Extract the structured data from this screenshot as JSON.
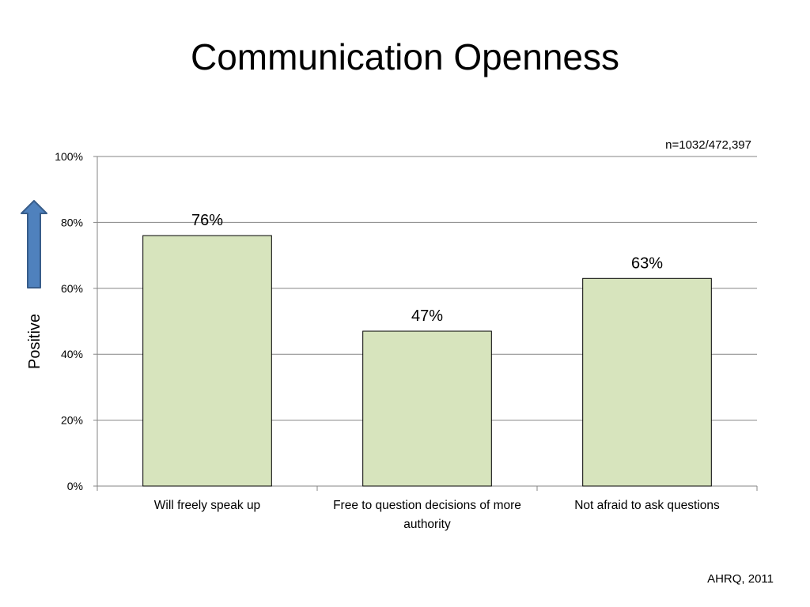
{
  "slide": {
    "title": "Communication Openness",
    "sample_note": "n=1032/472,397",
    "source": "AHRQ, 2011",
    "arrow_icon": "up-arrow-icon",
    "colors": {
      "bar_fill": "#d7e4bd",
      "bar_stroke": "#000000",
      "grid": "#868686",
      "arrow_fill": "#4f81bd",
      "arrow_stroke": "#385d8a"
    }
  },
  "chart_data": {
    "type": "bar",
    "title": "Communication Openness",
    "ylabel": "Positive",
    "xlabel": "",
    "categories": [
      "Will freely speak up",
      "Free to question decisions of more authority",
      "Not afraid to ask questions"
    ],
    "values": [
      76,
      47,
      63
    ],
    "data_labels": [
      "76%",
      "47%",
      "63%"
    ],
    "ylim": [
      0,
      100
    ],
    "yticks": [
      0,
      20,
      40,
      60,
      80,
      100
    ],
    "ytick_labels": [
      "0%",
      "20%",
      "40%",
      "60%",
      "80%",
      "100%"
    ],
    "grid": true,
    "legend": "none"
  }
}
